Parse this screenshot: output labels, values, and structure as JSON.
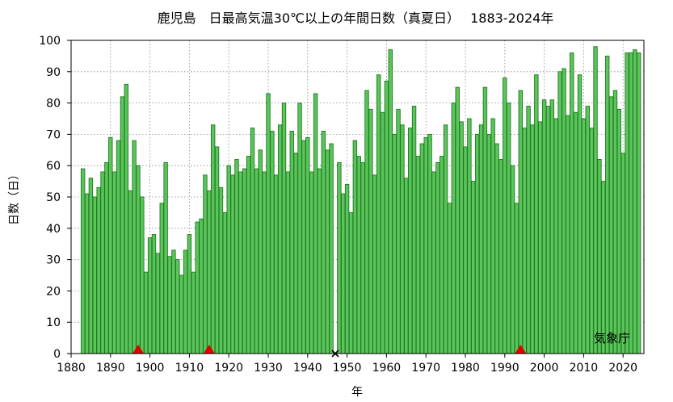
{
  "chart_data": {
    "type": "bar",
    "title": "鹿児島　日最高気温30℃以上の年間日数（真夏日）　 1883-2024年",
    "xlabel": "年",
    "ylabel": "日数（日）",
    "source_label": "気象庁",
    "xlim": [
      1880,
      2025
    ],
    "ylim": [
      0,
      100
    ],
    "xticks": [
      1880,
      1890,
      1900,
      1910,
      1920,
      1930,
      1940,
      1950,
      1960,
      1970,
      1980,
      1990,
      2000,
      2010,
      2020
    ],
    "yticks": [
      0,
      10,
      20,
      30,
      40,
      50,
      60,
      70,
      80,
      90,
      100
    ],
    "grid": true,
    "colors": {
      "bar_fill": "#5cc45c",
      "bar_edge": "#1f7a1f",
      "marker": "#e00000"
    },
    "x": [
      1883,
      1884,
      1885,
      1886,
      1887,
      1888,
      1889,
      1890,
      1891,
      1892,
      1893,
      1894,
      1895,
      1896,
      1897,
      1898,
      1899,
      1900,
      1901,
      1902,
      1903,
      1904,
      1905,
      1906,
      1907,
      1908,
      1909,
      1910,
      1911,
      1912,
      1913,
      1914,
      1915,
      1916,
      1917,
      1918,
      1919,
      1920,
      1921,
      1922,
      1923,
      1924,
      1925,
      1926,
      1927,
      1928,
      1929,
      1930,
      1931,
      1932,
      1933,
      1934,
      1935,
      1936,
      1937,
      1938,
      1939,
      1940,
      1941,
      1942,
      1943,
      1944,
      1945,
      1946,
      1947,
      1948,
      1949,
      1950,
      1951,
      1952,
      1953,
      1954,
      1955,
      1956,
      1957,
      1958,
      1959,
      1960,
      1961,
      1962,
      1963,
      1964,
      1965,
      1966,
      1967,
      1968,
      1969,
      1970,
      1971,
      1972,
      1973,
      1974,
      1975,
      1976,
      1977,
      1978,
      1979,
      1980,
      1981,
      1982,
      1983,
      1984,
      1985,
      1986,
      1987,
      1988,
      1989,
      1990,
      1991,
      1992,
      1993,
      1994,
      1995,
      1996,
      1997,
      1998,
      1999,
      2000,
      2001,
      2002,
      2003,
      2004,
      2005,
      2006,
      2007,
      2008,
      2009,
      2010,
      2011,
      2012,
      2013,
      2014,
      2015,
      2016,
      2017,
      2018,
      2019,
      2020,
      2021,
      2022,
      2023,
      2024
    ],
    "values": [
      59,
      51,
      56,
      50,
      53,
      58,
      61,
      69,
      58,
      68,
      82,
      86,
      52,
      68,
      60,
      50,
      26,
      37,
      38,
      32,
      48,
      61,
      31,
      33,
      30,
      25,
      33,
      38,
      26,
      42,
      43,
      57,
      52,
      73,
      66,
      53,
      45,
      60,
      57,
      62,
      58,
      59,
      63,
      72,
      59,
      65,
      58,
      83,
      71,
      57,
      73,
      80,
      58,
      71,
      64,
      80,
      68,
      69,
      58,
      83,
      59,
      71,
      65,
      67,
      null,
      61,
      51,
      54,
      45,
      68,
      63,
      61,
      84,
      78,
      57,
      89,
      77,
      87,
      97,
      70,
      78,
      73,
      56,
      72,
      79,
      63,
      67,
      69,
      70,
      58,
      61,
      63,
      73,
      48,
      80,
      85,
      74,
      66,
      75,
      55,
      70,
      73,
      85,
      70,
      75,
      67,
      62,
      88,
      80,
      60,
      48,
      84,
      72,
      79,
      73,
      89,
      74,
      81,
      79,
      81,
      75,
      90,
      91,
      76,
      96,
      77,
      89,
      75,
      79,
      72,
      98,
      62,
      55,
      95,
      82,
      84,
      78,
      64,
      96,
      96,
      97,
      96
    ],
    "markers": [
      {
        "x": 1897,
        "value": 0,
        "symbol": "triangle"
      },
      {
        "x": 1915,
        "value": 0,
        "symbol": "triangle"
      },
      {
        "x": 1947,
        "value": 0,
        "symbol": "x"
      },
      {
        "x": 1994,
        "value": 0,
        "symbol": "triangle"
      }
    ]
  }
}
